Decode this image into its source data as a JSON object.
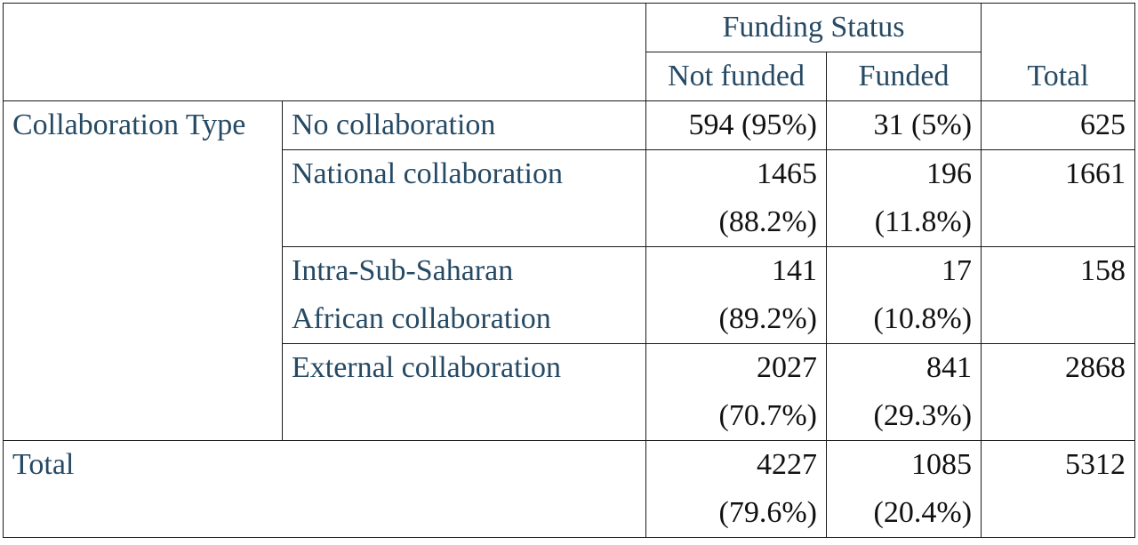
{
  "table": {
    "header": {
      "group_label": "Funding Status",
      "col_not_funded": "Not funded",
      "col_funded": "Funded",
      "col_total": "Total"
    },
    "row_group_label": "Collaboration Type",
    "rows": [
      {
        "label_lines": [
          "No collaboration"
        ],
        "not_funded": [
          "594 (95%)"
        ],
        "funded": [
          "31 (5%)"
        ],
        "total": "625"
      },
      {
        "label_lines": [
          "National collaboration"
        ],
        "not_funded": [
          "1465",
          "(88.2%)"
        ],
        "funded": [
          "196",
          "(11.8%)"
        ],
        "total": "1661"
      },
      {
        "label_lines": [
          "Intra-Sub-Saharan",
          "African collaboration"
        ],
        "not_funded": [
          "141",
          "(89.2%)"
        ],
        "funded": [
          "17",
          "(10.8%)"
        ],
        "total": "158"
      },
      {
        "label_lines": [
          "External collaboration"
        ],
        "not_funded": [
          "2027",
          "(70.7%)"
        ],
        "funded": [
          "841",
          "(29.3%)"
        ],
        "total": "2868"
      }
    ],
    "total_row": {
      "label": "Total",
      "not_funded": [
        "4227",
        "(79.6%)"
      ],
      "funded": [
        "1085",
        "(20.4%)"
      ],
      "total": "5312"
    }
  }
}
